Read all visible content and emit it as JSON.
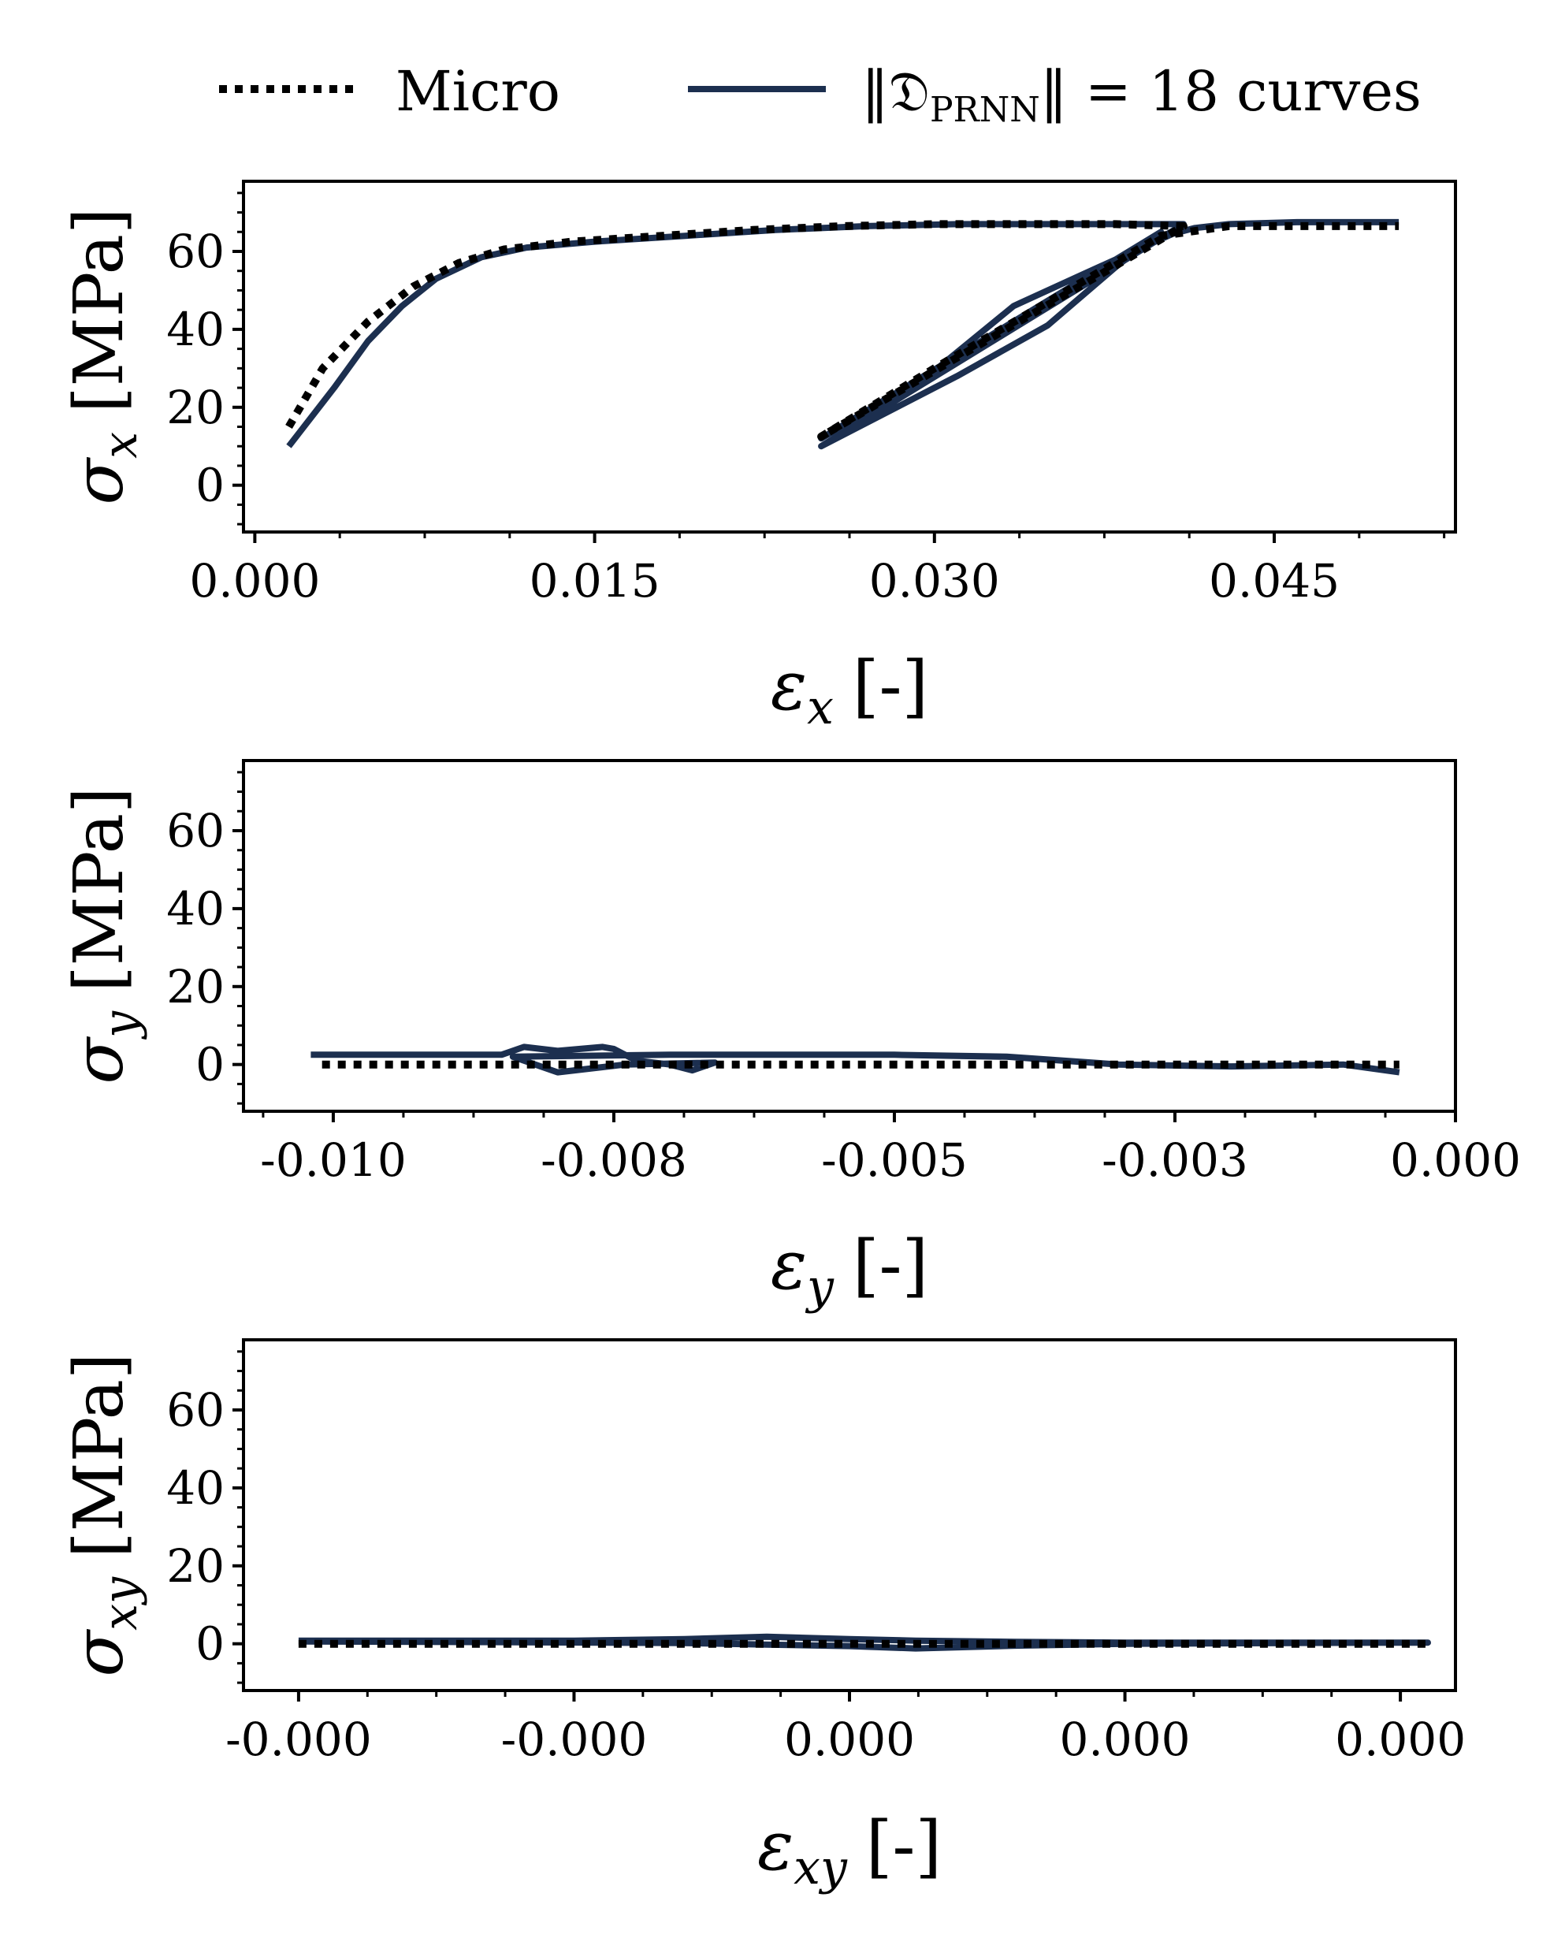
{
  "legend": {
    "micro_label": "Micro",
    "prnn_label_prefix": "‖𝔇",
    "prnn_label_sub": "PRNN",
    "prnn_label_suffix": "‖ = 18 curves"
  },
  "colors": {
    "micro": "#000000",
    "prnn": "#1c2f4f"
  },
  "chart_data": [
    {
      "type": "line",
      "name": "sigma-x",
      "xlabel": "εx [-]",
      "ylabel": "σx [MPa]",
      "xlabel_main": "ε",
      "xlabel_sub": "x",
      "xlabel_unit": "[-]",
      "ylabel_main": "σ",
      "ylabel_sub": "x",
      "ylabel_unit": "[MPa]",
      "xlim": [
        -0.0005,
        0.053
      ],
      "ylim": [
        -12,
        78
      ],
      "xticks": [
        0.0,
        0.015,
        0.03,
        0.045
      ],
      "xtick_labels": [
        "0.000",
        "0.015",
        "0.030",
        "0.045"
      ],
      "yticks": [
        0,
        20,
        40,
        60
      ],
      "ytick_labels": [
        "0",
        "20",
        "40",
        "60"
      ],
      "series": [
        {
          "name": "Micro",
          "style": "dotted",
          "x": [
            0.0015,
            0.003,
            0.005,
            0.007,
            0.009,
            0.011,
            0.014,
            0.018,
            0.022,
            0.026,
            0.03,
            0.034,
            0.038,
            0.041,
            0.025,
            0.03,
            0.035,
            0.04,
            0.043,
            0.047,
            0.0505
          ],
          "y": [
            15,
            30,
            42,
            51,
            57,
            60.5,
            62.5,
            64,
            65.5,
            66.5,
            67,
            67,
            67,
            66.5,
            12.5,
            30,
            47,
            64,
            66.5,
            66.5,
            66.5
          ]
        },
        {
          "name": "PRNN",
          "style": "solid",
          "x": [
            0.0015,
            0.0035,
            0.005,
            0.0065,
            0.008,
            0.01,
            0.012,
            0.015,
            0.019,
            0.023,
            0.027,
            0.031,
            0.035,
            0.038,
            0.041,
            0.025,
            0.031,
            0.035,
            0.038,
            0.04,
            0.025,
            0.0295,
            0.0335,
            0.0365,
            0.0405,
            0.0415,
            0.043,
            0.046,
            0.0505
          ],
          "y": [
            10,
            25,
            37,
            46,
            53,
            58.5,
            61,
            62.5,
            64,
            65.5,
            66.5,
            67,
            67,
            67,
            67,
            10,
            28,
            41,
            56,
            65,
            12,
            27,
            46,
            54,
            64.5,
            66,
            67,
            67.5,
            67.5
          ]
        }
      ]
    },
    {
      "type": "line",
      "name": "sigma-y",
      "xlabel": "εy [-]",
      "ylabel": "σy [MPa]",
      "xlabel_main": "ε",
      "xlabel_sub": "y",
      "xlabel_unit": "[-]",
      "ylabel_main": "σ",
      "ylabel_sub": "y",
      "ylabel_unit": "[MPa]",
      "xlim": [
        -0.0108,
        0.0
      ],
      "ylim": [
        -12,
        78
      ],
      "xticks": [
        -0.01,
        -0.0075,
        -0.005,
        -0.0025,
        0.0
      ],
      "xtick_labels": [
        "-0.010",
        "-0.008",
        "-0.005",
        "-0.003",
        "0.000"
      ],
      "yticks": [
        0,
        20,
        40,
        60
      ],
      "ytick_labels": [
        "0",
        "20",
        "40",
        "60"
      ],
      "series": [
        {
          "name": "Micro",
          "style": "dotted",
          "x": [
            -0.0101,
            -0.008,
            -0.006,
            -0.004,
            -0.002,
            -0.0005
          ],
          "y": [
            0,
            0,
            0,
            0,
            0,
            0
          ]
        },
        {
          "name": "PRNN",
          "style": "solid",
          "x": [
            -0.0102,
            -0.0085,
            -0.0083,
            -0.008,
            -0.0078,
            -0.0076,
            -0.0075,
            -0.0073,
            -0.007,
            -0.0068,
            -0.0066,
            -0.0074,
            -0.008,
            -0.0084,
            -0.007,
            -0.005,
            -0.004,
            -0.003,
            -0.002,
            -0.001,
            -0.0005
          ],
          "y": [
            2.5,
            2.5,
            4.5,
            3.5,
            4.0,
            4.5,
            4.0,
            1.0,
            0,
            -1.5,
            0.5,
            0,
            -2,
            2,
            2.5,
            2.5,
            2,
            0,
            -0.5,
            0,
            -2
          ]
        }
      ]
    },
    {
      "type": "line",
      "name": "sigma-xy",
      "xlabel": "εxy [-]",
      "ylabel": "σxy [MPa]",
      "xlabel_main": "ε",
      "xlabel_sub": "xy",
      "xlabel_unit": "[-]",
      "ylabel_main": "σ",
      "ylabel_sub": "xy",
      "ylabel_unit": "[MPa]",
      "xlim": [
        -0.00011,
        0.00011
      ],
      "ylim": [
        -12,
        78
      ],
      "xticks": [
        -0.0001,
        -5e-05,
        0.0,
        5e-05,
        0.0001
      ],
      "xtick_labels": [
        "-0.000",
        "-0.000",
        "0.000",
        "0.000",
        "0.000"
      ],
      "yticks": [
        0,
        20,
        40,
        60
      ],
      "ytick_labels": [
        "0",
        "20",
        "40",
        "60"
      ],
      "series": [
        {
          "name": "Micro",
          "style": "dotted",
          "x": [
            -0.0001,
            -5e-05,
            0.0,
            5e-05,
            0.000105
          ],
          "y": [
            0,
            0,
            0,
            0,
            0
          ]
        },
        {
          "name": "PRNN",
          "style": "solid",
          "x": [
            -0.0001,
            -5e-05,
            -3e-05,
            -1.5e-05,
            0.0,
            1.2e-05,
            3e-05,
            5e-05,
            8e-05,
            0.000105,
            8e-05,
            5e-05,
            3e-05,
            1.2e-05,
            0.0,
            -1.5e-05,
            -3e-05,
            -6e-05,
            -0.0001
          ],
          "y": [
            0.8,
            0.8,
            1.2,
            1.8,
            1.2,
            0.8,
            0.5,
            0.3,
            0.3,
            0.3,
            0.2,
            0.0,
            -0.5,
            -1.2,
            -0.6,
            -0.2,
            0.2,
            0.4,
            0.6
          ]
        }
      ]
    }
  ]
}
